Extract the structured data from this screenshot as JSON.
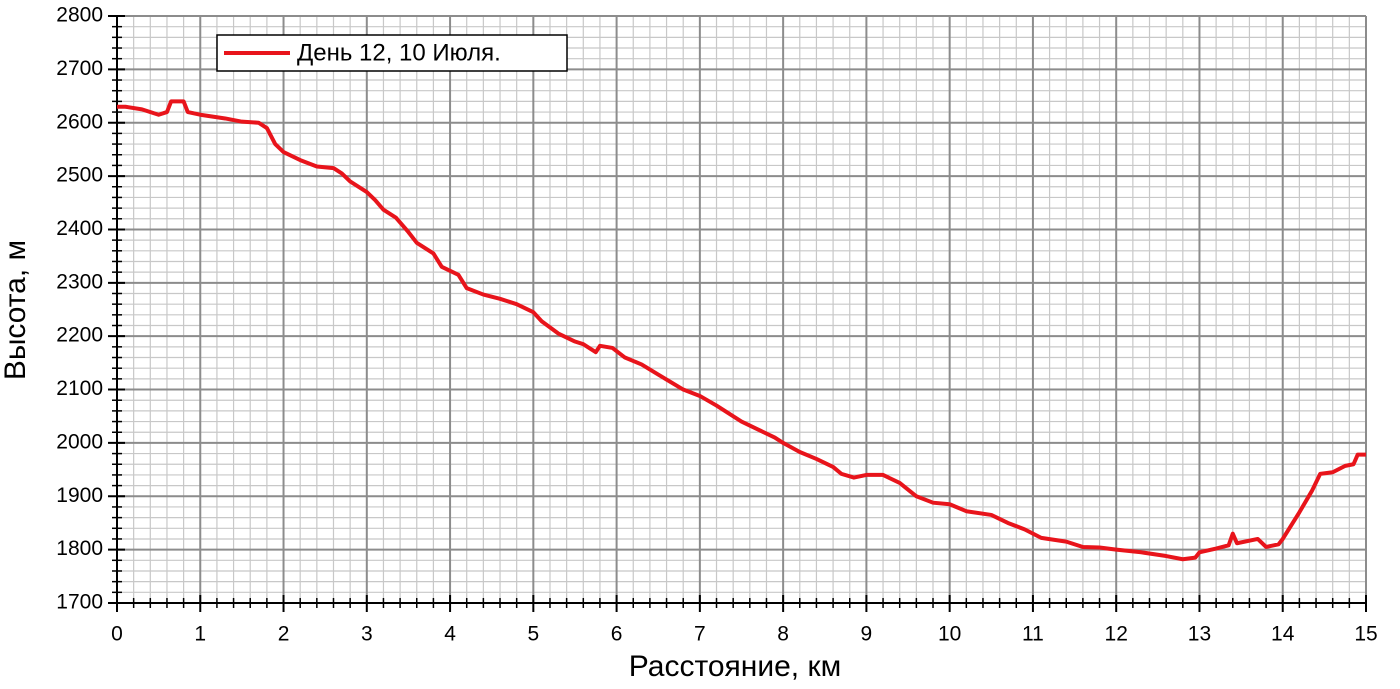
{
  "chart_data": {
    "type": "line",
    "x_label": "Расстояние, км",
    "y_label": "Высота, м",
    "x": [
      0,
      0.1,
      0.3,
      0.5,
      0.6,
      0.65,
      0.8,
      0.85,
      1.0,
      1.3,
      1.5,
      1.7,
      1.8,
      1.9,
      2.0,
      2.2,
      2.4,
      2.6,
      2.7,
      2.8,
      3.0,
      3.1,
      3.2,
      3.35,
      3.5,
      3.6,
      3.8,
      3.9,
      4.1,
      4.2,
      4.4,
      4.6,
      4.8,
      5.0,
      5.1,
      5.3,
      5.5,
      5.6,
      5.75,
      5.8,
      5.95,
      6.1,
      6.3,
      6.5,
      6.8,
      7.0,
      7.2,
      7.5,
      7.7,
      7.9,
      8.0,
      8.2,
      8.4,
      8.6,
      8.7,
      8.85,
      9.0,
      9.2,
      9.4,
      9.6,
      9.8,
      10.0,
      10.2,
      10.5,
      10.7,
      10.9,
      11.1,
      11.4,
      11.6,
      11.8,
      12.0,
      12.3,
      12.6,
      12.8,
      12.95,
      13.0,
      13.2,
      13.35,
      13.4,
      13.45,
      13.7,
      13.8,
      13.95,
      14.0,
      14.2,
      14.35,
      14.45,
      14.6,
      14.75,
      14.85,
      14.9,
      15.0
    ],
    "series": [
      {
        "name": "День 12, 10 Июля.",
        "color": "#e8141b",
        "values": [
          2630,
          2630,
          2625,
          2615,
          2620,
          2640,
          2640,
          2620,
          2615,
          2608,
          2602,
          2600,
          2590,
          2560,
          2545,
          2530,
          2518,
          2515,
          2505,
          2490,
          2470,
          2455,
          2437,
          2422,
          2395,
          2375,
          2355,
          2330,
          2315,
          2290,
          2278,
          2270,
          2260,
          2245,
          2228,
          2205,
          2190,
          2185,
          2170,
          2182,
          2178,
          2160,
          2147,
          2128,
          2100,
          2088,
          2070,
          2040,
          2025,
          2010,
          2000,
          1983,
          1970,
          1955,
          1942,
          1935,
          1940,
          1940,
          1925,
          1900,
          1888,
          1885,
          1872,
          1865,
          1850,
          1838,
          1822,
          1815,
          1805,
          1804,
          1800,
          1795,
          1788,
          1782,
          1785,
          1795,
          1802,
          1808,
          1830,
          1812,
          1820,
          1805,
          1810,
          1820,
          1870,
          1910,
          1942,
          1945,
          1957,
          1960,
          1978,
          1978
        ]
      }
    ],
    "xlim": [
      0,
      15
    ],
    "xticks": [
      0,
      1,
      2,
      3,
      4,
      5,
      6,
      7,
      8,
      9,
      10,
      11,
      12,
      13,
      14,
      15
    ],
    "ylim": [
      1700,
      2800
    ],
    "yticks": [
      1700,
      1800,
      1900,
      2000,
      2100,
      2200,
      2300,
      2400,
      2500,
      2600,
      2700,
      2800
    ],
    "grid": true,
    "legend": "upper left"
  }
}
